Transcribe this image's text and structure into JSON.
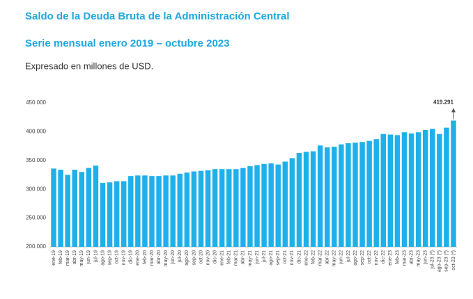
{
  "chart_data": {
    "type": "bar",
    "title": "Saldo de la Deuda Bruta de la Administración Central",
    "subtitle": "Serie mensual enero 2019 – octubre 2023",
    "note": "Expresado en millones de USD.",
    "color": "#1eb0ea",
    "categories": [
      "ene-19",
      "feb-19",
      "mar-19",
      "abr-19",
      "may-19",
      "jun-19",
      "jul-19",
      "ago-19",
      "sep-19",
      "oct-19",
      "nov-19",
      "dic-19",
      "ene-20",
      "feb-20",
      "mar-20",
      "abr-20",
      "may-20",
      "jun-20",
      "jul-20",
      "ago-20",
      "sep-20",
      "oct-20",
      "nov-20",
      "dic-20",
      "ene-21",
      "feb-21",
      "mar-21",
      "abr-21",
      "may-21",
      "jun-21",
      "jul-21",
      "ago-21",
      "sep-21",
      "oct-21",
      "nov-21",
      "dic-21",
      "ene-22",
      "feb-22",
      "mar-22",
      "abr-22",
      "may-22",
      "jun-22",
      "jul-22",
      "ago-22",
      "sep-22",
      "oct-22",
      "nov-22",
      "dic-22",
      "ene-23",
      "feb-23",
      "mar-23",
      "abr-23",
      "may-23",
      "jun-23",
      "jul-23 (*)",
      "ago-23 (*)",
      "sep-23 (*)",
      "oct-23 (*)"
    ],
    "values": [
      336000,
      334000,
      325000,
      334000,
      330000,
      337000,
      341000,
      311000,
      312000,
      314000,
      314000,
      323000,
      324000,
      324000,
      323000,
      323000,
      324000,
      324000,
      327000,
      329000,
      331000,
      332000,
      333000,
      335000,
      335000,
      335000,
      335000,
      337000,
      340000,
      342000,
      344000,
      345000,
      343000,
      348000,
      354000,
      363000,
      365000,
      366000,
      376000,
      373000,
      374000,
      378000,
      380000,
      381000,
      382000,
      384000,
      387000,
      396000,
      395000,
      394000,
      399000,
      397000,
      399000,
      403000,
      405000,
      396000,
      407000,
      419291
    ],
    "value_labels": {
      "57": "419.291"
    },
    "ylim": [
      200000,
      450000
    ],
    "yticks": [
      {
        "value": 200000,
        "label": "200.000"
      },
      {
        "value": 250000,
        "label": "250.000"
      },
      {
        "value": 300000,
        "label": "300.000"
      },
      {
        "value": 350000,
        "label": "350.000"
      },
      {
        "value": 400000,
        "label": "400.000"
      },
      {
        "value": 450000,
        "label": "450.000"
      }
    ]
  }
}
